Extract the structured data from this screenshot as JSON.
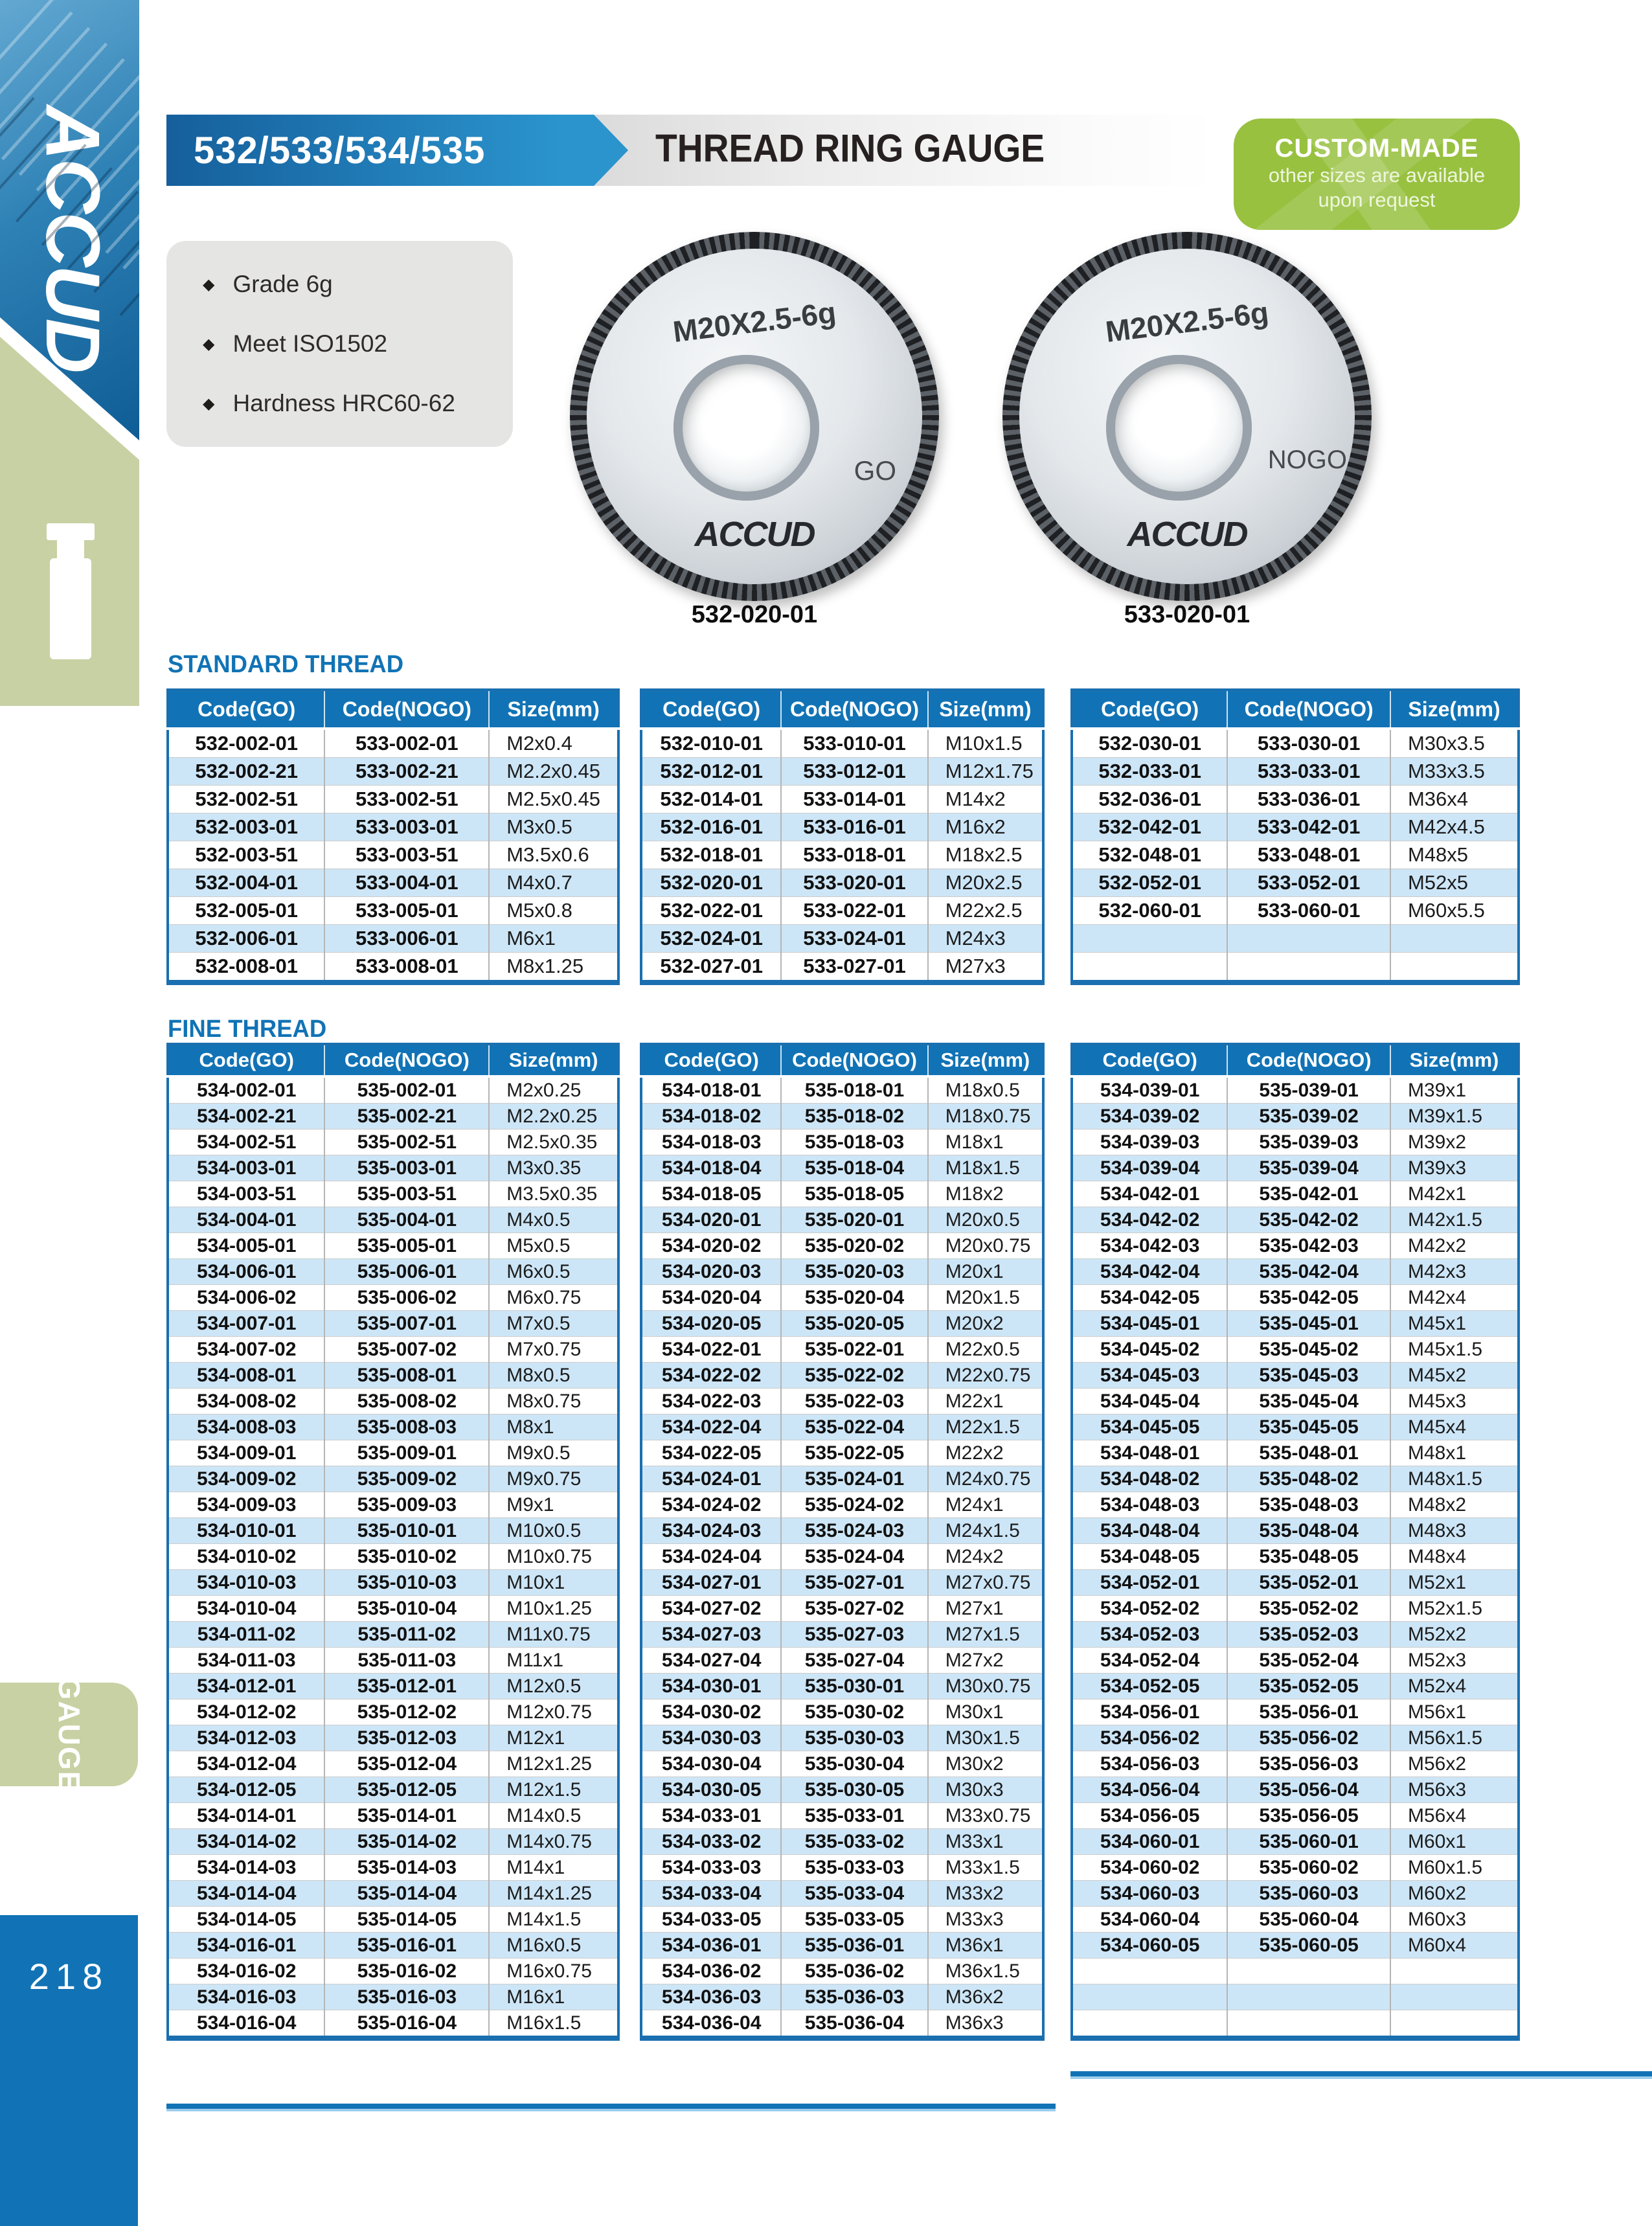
{
  "sidebar": {
    "brand": "ACCUD",
    "tab": "GAUGE",
    "page_number": "218"
  },
  "header": {
    "models": "532/533/534/535",
    "title": "THREAD RING GAUGE",
    "badge": {
      "title": "CUSTOM-MADE",
      "subtitle_line1": "other sizes are available",
      "subtitle_line2": "upon request"
    }
  },
  "feature_bullet": "◆",
  "features": [
    "Grade 6g",
    "Meet ISO1502",
    "Hardness HRC60-62"
  ],
  "products": [
    {
      "marking": "M20X2.5-6g",
      "side": "GO",
      "brand": "ACCUD",
      "caption": "532-020-01"
    },
    {
      "marking": "M20X2.5-6g",
      "side": "NOGO",
      "brand": "ACCUD",
      "caption": "533-020-01"
    }
  ],
  "sections": [
    {
      "title": "STANDARD THREAD",
      "columns": [
        "Code(GO)",
        "Code(NOGO)",
        "Size(mm)"
      ],
      "tables": [
        [
          [
            "532-002-01",
            "533-002-01",
            "M2x0.4"
          ],
          [
            "532-002-21",
            "533-002-21",
            "M2.2x0.45"
          ],
          [
            "532-002-51",
            "533-002-51",
            "M2.5x0.45"
          ],
          [
            "532-003-01",
            "533-003-01",
            "M3x0.5"
          ],
          [
            "532-003-51",
            "533-003-51",
            "M3.5x0.6"
          ],
          [
            "532-004-01",
            "533-004-01",
            "M4x0.7"
          ],
          [
            "532-005-01",
            "533-005-01",
            "M5x0.8"
          ],
          [
            "532-006-01",
            "533-006-01",
            "M6x1"
          ],
          [
            "532-008-01",
            "533-008-01",
            "M8x1.25"
          ]
        ],
        [
          [
            "532-010-01",
            "533-010-01",
            "M10x1.5"
          ],
          [
            "532-012-01",
            "533-012-01",
            "M12x1.75"
          ],
          [
            "532-014-01",
            "533-014-01",
            "M14x2"
          ],
          [
            "532-016-01",
            "533-016-01",
            "M16x2"
          ],
          [
            "532-018-01",
            "533-018-01",
            "M18x2.5"
          ],
          [
            "532-020-01",
            "533-020-01",
            "M20x2.5"
          ],
          [
            "532-022-01",
            "533-022-01",
            "M22x2.5"
          ],
          [
            "532-024-01",
            "533-024-01",
            "M24x3"
          ],
          [
            "532-027-01",
            "533-027-01",
            "M27x3"
          ]
        ],
        [
          [
            "532-030-01",
            "533-030-01",
            "M30x3.5"
          ],
          [
            "532-033-01",
            "533-033-01",
            "M33x3.5"
          ],
          [
            "532-036-01",
            "533-036-01",
            "M36x4"
          ],
          [
            "532-042-01",
            "533-042-01",
            "M42x4.5"
          ],
          [
            "532-048-01",
            "533-048-01",
            "M48x5"
          ],
          [
            "532-052-01",
            "533-052-01",
            "M52x5"
          ],
          [
            "532-060-01",
            "533-060-01",
            "M60x5.5"
          ],
          [
            "",
            "",
            ""
          ],
          [
            "",
            "",
            ""
          ]
        ]
      ]
    },
    {
      "title": "FINE THREAD",
      "columns": [
        "Code(GO)",
        "Code(NOGO)",
        "Size(mm)"
      ],
      "tables": [
        [
          [
            "534-002-01",
            "535-002-01",
            "M2x0.25"
          ],
          [
            "534-002-21",
            "535-002-21",
            "M2.2x0.25"
          ],
          [
            "534-002-51",
            "535-002-51",
            "M2.5x0.35"
          ],
          [
            "534-003-01",
            "535-003-01",
            "M3x0.35"
          ],
          [
            "534-003-51",
            "535-003-51",
            "M3.5x0.35"
          ],
          [
            "534-004-01",
            "535-004-01",
            "M4x0.5"
          ],
          [
            "534-005-01",
            "535-005-01",
            "M5x0.5"
          ],
          [
            "534-006-01",
            "535-006-01",
            "M6x0.5"
          ],
          [
            "534-006-02",
            "535-006-02",
            "M6x0.75"
          ],
          [
            "534-007-01",
            "535-007-01",
            "M7x0.5"
          ],
          [
            "534-007-02",
            "535-007-02",
            "M7x0.75"
          ],
          [
            "534-008-01",
            "535-008-01",
            "M8x0.5"
          ],
          [
            "534-008-02",
            "535-008-02",
            "M8x0.75"
          ],
          [
            "534-008-03",
            "535-008-03",
            "M8x1"
          ],
          [
            "534-009-01",
            "535-009-01",
            "M9x0.5"
          ],
          [
            "534-009-02",
            "535-009-02",
            "M9x0.75"
          ],
          [
            "534-009-03",
            "535-009-03",
            "M9x1"
          ],
          [
            "534-010-01",
            "535-010-01",
            "M10x0.5"
          ],
          [
            "534-010-02",
            "535-010-02",
            "M10x0.75"
          ],
          [
            "534-010-03",
            "535-010-03",
            "M10x1"
          ],
          [
            "534-010-04",
            "535-010-04",
            "M10x1.25"
          ],
          [
            "534-011-02",
            "535-011-02",
            "M11x0.75"
          ],
          [
            "534-011-03",
            "535-011-03",
            "M11x1"
          ],
          [
            "534-012-01",
            "535-012-01",
            "M12x0.5"
          ],
          [
            "534-012-02",
            "535-012-02",
            "M12x0.75"
          ],
          [
            "534-012-03",
            "535-012-03",
            "M12x1"
          ],
          [
            "534-012-04",
            "535-012-04",
            "M12x1.25"
          ],
          [
            "534-012-05",
            "535-012-05",
            "M12x1.5"
          ],
          [
            "534-014-01",
            "535-014-01",
            "M14x0.5"
          ],
          [
            "534-014-02",
            "535-014-02",
            "M14x0.75"
          ],
          [
            "534-014-03",
            "535-014-03",
            "M14x1"
          ],
          [
            "534-014-04",
            "535-014-04",
            "M14x1.25"
          ],
          [
            "534-014-05",
            "535-014-05",
            "M14x1.5"
          ],
          [
            "534-016-01",
            "535-016-01",
            "M16x0.5"
          ],
          [
            "534-016-02",
            "535-016-02",
            "M16x0.75"
          ],
          [
            "534-016-03",
            "535-016-03",
            "M16x1"
          ],
          [
            "534-016-04",
            "535-016-04",
            "M16x1.5"
          ]
        ],
        [
          [
            "534-018-01",
            "535-018-01",
            "M18x0.5"
          ],
          [
            "534-018-02",
            "535-018-02",
            "M18x0.75"
          ],
          [
            "534-018-03",
            "535-018-03",
            "M18x1"
          ],
          [
            "534-018-04",
            "535-018-04",
            "M18x1.5"
          ],
          [
            "534-018-05",
            "535-018-05",
            "M18x2"
          ],
          [
            "534-020-01",
            "535-020-01",
            "M20x0.5"
          ],
          [
            "534-020-02",
            "535-020-02",
            "M20x0.75"
          ],
          [
            "534-020-03",
            "535-020-03",
            "M20x1"
          ],
          [
            "534-020-04",
            "535-020-04",
            "M20x1.5"
          ],
          [
            "534-020-05",
            "535-020-05",
            "M20x2"
          ],
          [
            "534-022-01",
            "535-022-01",
            "M22x0.5"
          ],
          [
            "534-022-02",
            "535-022-02",
            "M22x0.75"
          ],
          [
            "534-022-03",
            "535-022-03",
            "M22x1"
          ],
          [
            "534-022-04",
            "535-022-04",
            "M22x1.5"
          ],
          [
            "534-022-05",
            "535-022-05",
            "M22x2"
          ],
          [
            "534-024-01",
            "535-024-01",
            "M24x0.75"
          ],
          [
            "534-024-02",
            "535-024-02",
            "M24x1"
          ],
          [
            "534-024-03",
            "535-024-03",
            "M24x1.5"
          ],
          [
            "534-024-04",
            "535-024-04",
            "M24x2"
          ],
          [
            "534-027-01",
            "535-027-01",
            "M27x0.75"
          ],
          [
            "534-027-02",
            "535-027-02",
            "M27x1"
          ],
          [
            "534-027-03",
            "535-027-03",
            "M27x1.5"
          ],
          [
            "534-027-04",
            "535-027-04",
            "M27x2"
          ],
          [
            "534-030-01",
            "535-030-01",
            "M30x0.75"
          ],
          [
            "534-030-02",
            "535-030-02",
            "M30x1"
          ],
          [
            "534-030-03",
            "535-030-03",
            "M30x1.5"
          ],
          [
            "534-030-04",
            "535-030-04",
            "M30x2"
          ],
          [
            "534-030-05",
            "535-030-05",
            "M30x3"
          ],
          [
            "534-033-01",
            "535-033-01",
            "M33x0.75"
          ],
          [
            "534-033-02",
            "535-033-02",
            "M33x1"
          ],
          [
            "534-033-03",
            "535-033-03",
            "M33x1.5"
          ],
          [
            "534-033-04",
            "535-033-04",
            "M33x2"
          ],
          [
            "534-033-05",
            "535-033-05",
            "M33x3"
          ],
          [
            "534-036-01",
            "535-036-01",
            "M36x1"
          ],
          [
            "534-036-02",
            "535-036-02",
            "M36x1.5"
          ],
          [
            "534-036-03",
            "535-036-03",
            "M36x2"
          ],
          [
            "534-036-04",
            "535-036-04",
            "M36x3"
          ]
        ],
        [
          [
            "534-039-01",
            "535-039-01",
            "M39x1"
          ],
          [
            "534-039-02",
            "535-039-02",
            "M39x1.5"
          ],
          [
            "534-039-03",
            "535-039-03",
            "M39x2"
          ],
          [
            "534-039-04",
            "535-039-04",
            "M39x3"
          ],
          [
            "534-042-01",
            "535-042-01",
            "M42x1"
          ],
          [
            "534-042-02",
            "535-042-02",
            "M42x1.5"
          ],
          [
            "534-042-03",
            "535-042-03",
            "M42x2"
          ],
          [
            "534-042-04",
            "535-042-04",
            "M42x3"
          ],
          [
            "534-042-05",
            "535-042-05",
            "M42x4"
          ],
          [
            "534-045-01",
            "535-045-01",
            "M45x1"
          ],
          [
            "534-045-02",
            "535-045-02",
            "M45x1.5"
          ],
          [
            "534-045-03",
            "535-045-03",
            "M45x2"
          ],
          [
            "534-045-04",
            "535-045-04",
            "M45x3"
          ],
          [
            "534-045-05",
            "535-045-05",
            "M45x4"
          ],
          [
            "534-048-01",
            "535-048-01",
            "M48x1"
          ],
          [
            "534-048-02",
            "535-048-02",
            "M48x1.5"
          ],
          [
            "534-048-03",
            "535-048-03",
            "M48x2"
          ],
          [
            "534-048-04",
            "535-048-04",
            "M48x3"
          ],
          [
            "534-048-05",
            "535-048-05",
            "M48x4"
          ],
          [
            "534-052-01",
            "535-052-01",
            "M52x1"
          ],
          [
            "534-052-02",
            "535-052-02",
            "M52x1.5"
          ],
          [
            "534-052-03",
            "535-052-03",
            "M52x2"
          ],
          [
            "534-052-04",
            "535-052-04",
            "M52x3"
          ],
          [
            "534-052-05",
            "535-052-05",
            "M52x4"
          ],
          [
            "534-056-01",
            "535-056-01",
            "M56x1"
          ],
          [
            "534-056-02",
            "535-056-02",
            "M56x1.5"
          ],
          [
            "534-056-03",
            "535-056-03",
            "M56x2"
          ],
          [
            "534-056-04",
            "535-056-04",
            "M56x3"
          ],
          [
            "534-056-05",
            "535-056-05",
            "M56x4"
          ],
          [
            "534-060-01",
            "535-060-01",
            "M60x1"
          ],
          [
            "534-060-02",
            "535-060-02",
            "M60x1.5"
          ],
          [
            "534-060-03",
            "535-060-03",
            "M60x2"
          ],
          [
            "534-060-04",
            "535-060-04",
            "M60x3"
          ],
          [
            "534-060-05",
            "535-060-05",
            "M60x4"
          ],
          [
            "",
            "",
            ""
          ],
          [
            "",
            "",
            ""
          ],
          [
            "",
            "",
            ""
          ]
        ]
      ]
    }
  ]
}
